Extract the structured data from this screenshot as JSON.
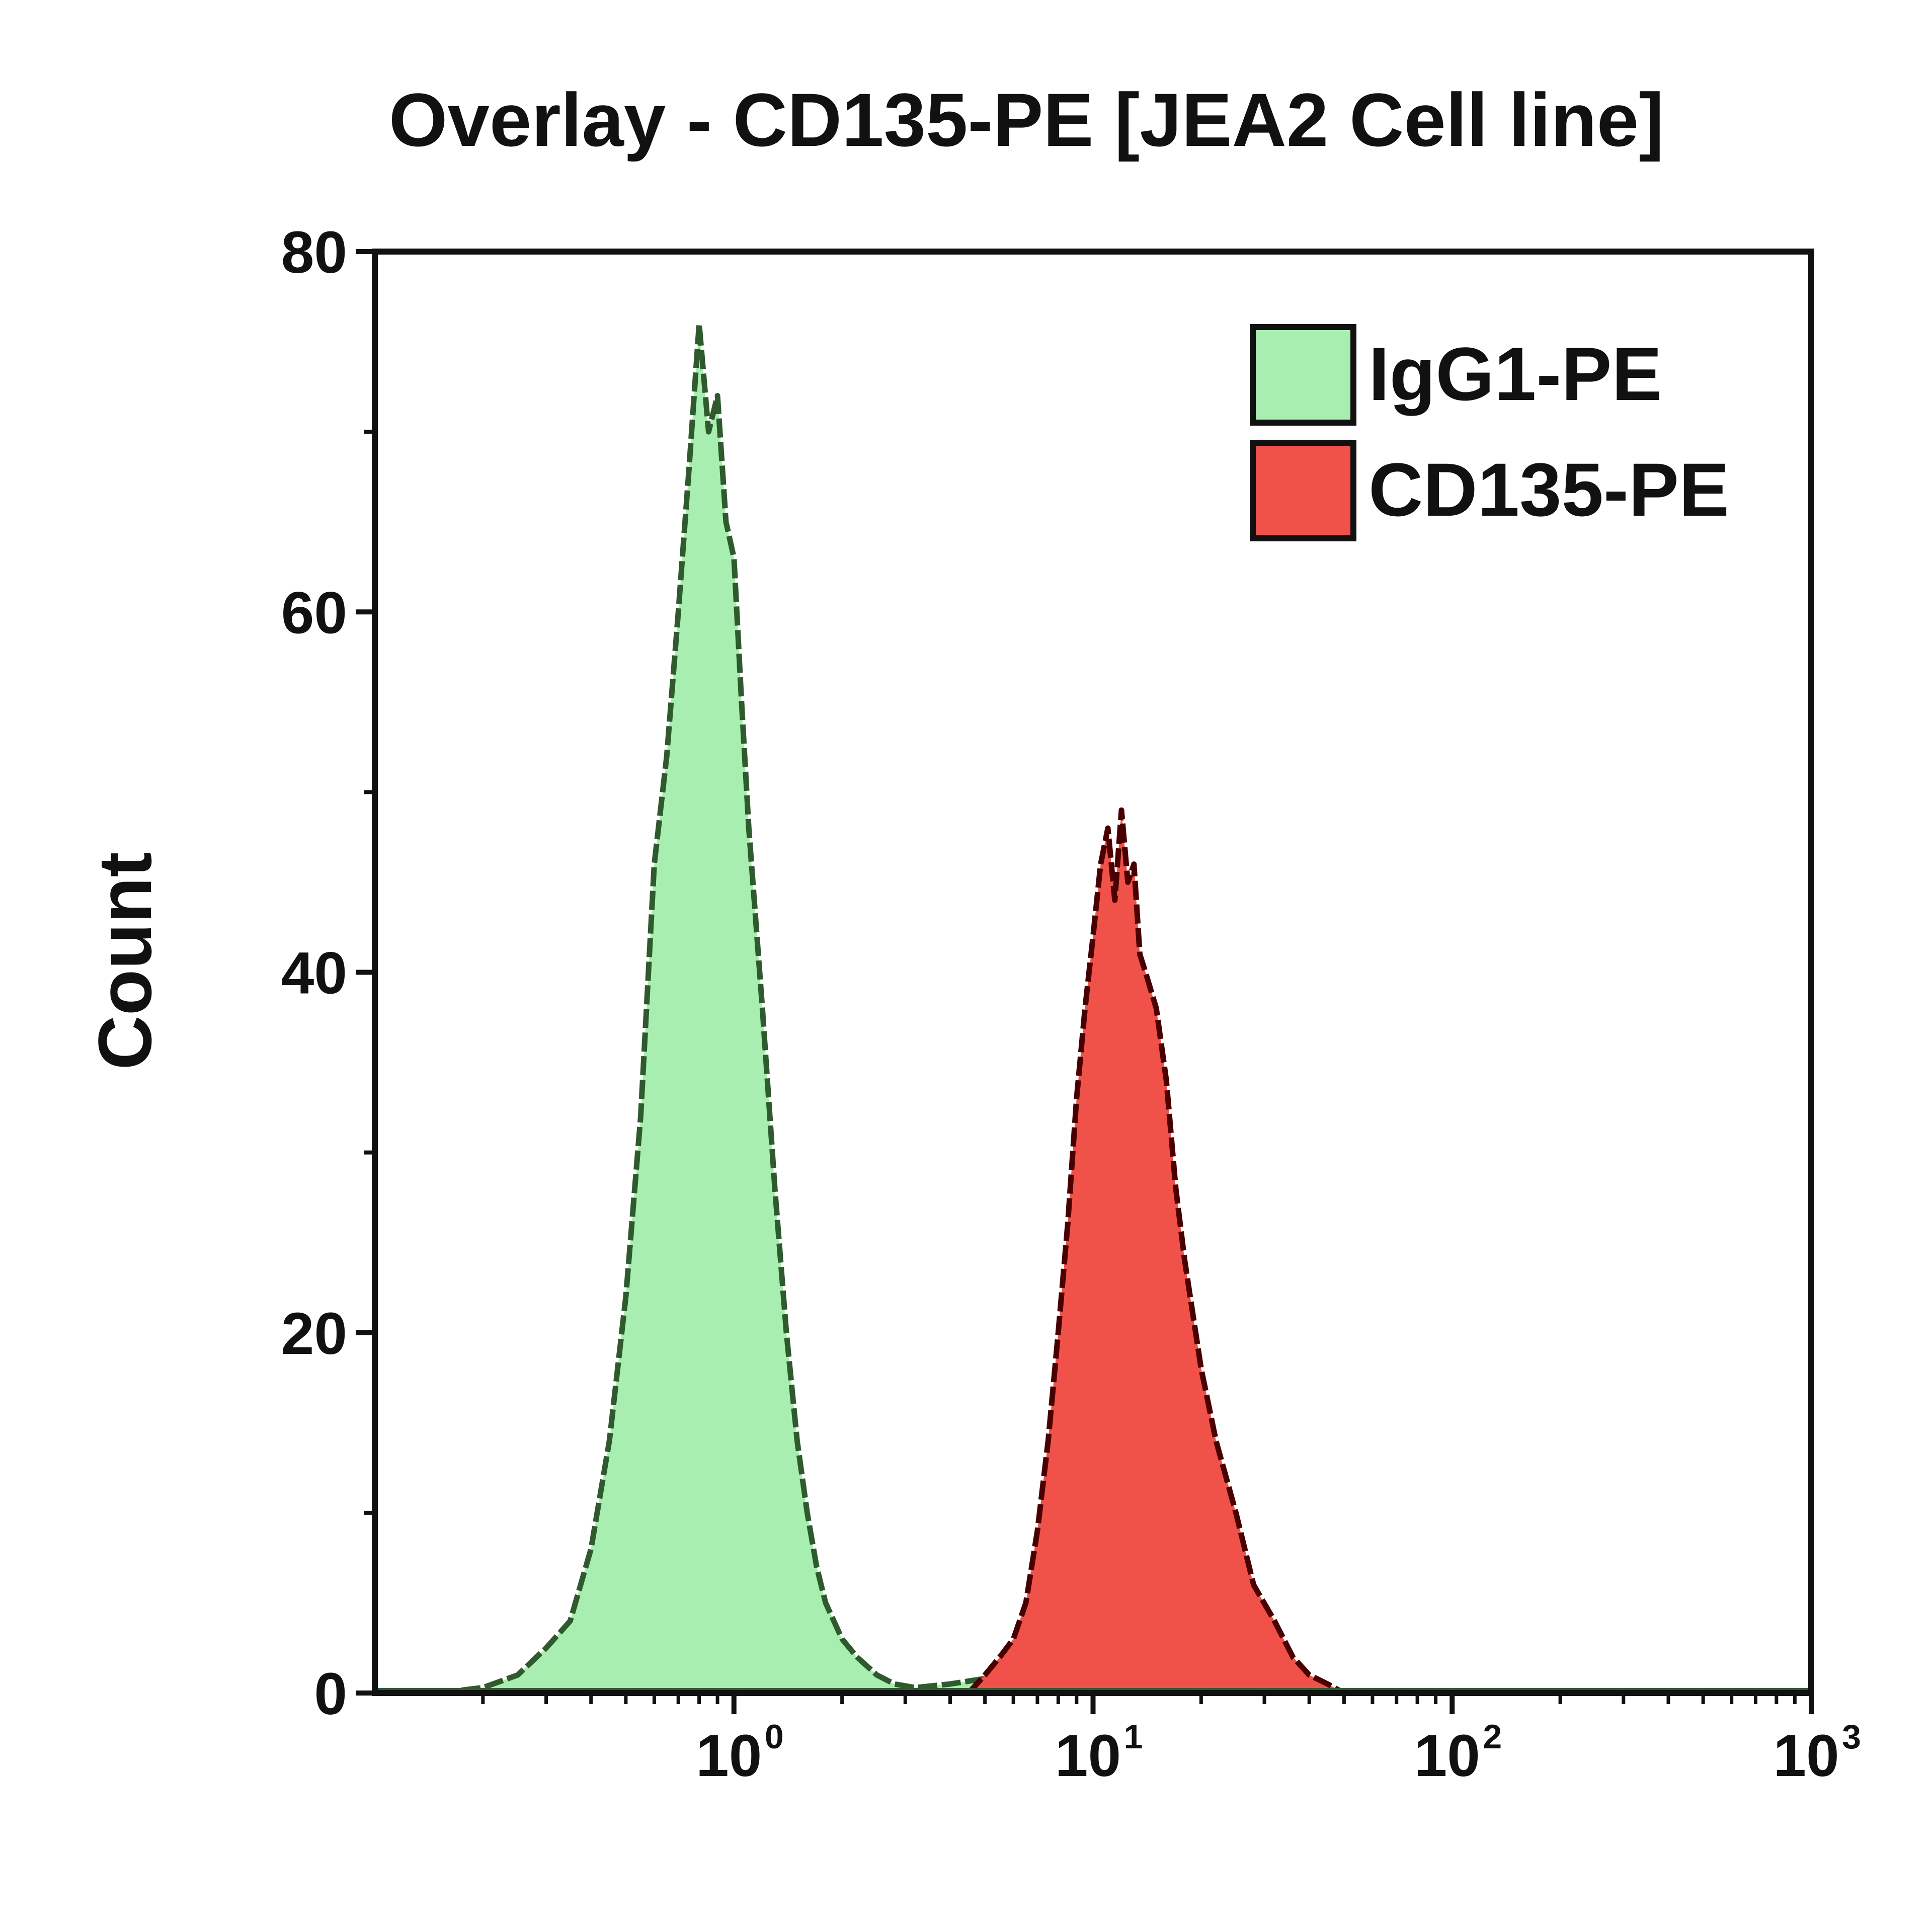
{
  "chart_data": {
    "type": "area",
    "title": "Overlay - CD135-PE [JEA2 Cell line]",
    "xlabel": "",
    "ylabel": "Count",
    "x_scale": "log",
    "xlim": [
      0.1,
      1000
    ],
    "ylim": [
      0,
      80
    ],
    "x_ticks": [
      {
        "base": "10",
        "exp": "0",
        "value": 1
      },
      {
        "base": "10",
        "exp": "1",
        "value": 10
      },
      {
        "base": "10",
        "exp": "2",
        "value": 100
      },
      {
        "base": "10",
        "exp": "3",
        "value": 1000
      }
    ],
    "y_ticks": [
      "0",
      "20",
      "40",
      "60",
      "80"
    ],
    "y_tick_values": [
      0,
      20,
      40,
      60,
      80
    ],
    "legend_position": "top-right",
    "grid": false,
    "series": [
      {
        "name": "IgG1-PE",
        "color": "#a8eeb0",
        "line_color": "#2e5a2e",
        "x": [
          0.15,
          0.2,
          0.25,
          0.3,
          0.35,
          0.4,
          0.45,
          0.5,
          0.55,
          0.6,
          0.65,
          0.7,
          0.75,
          0.8,
          0.85,
          0.9,
          0.95,
          1.0,
          1.05,
          1.1,
          1.2,
          1.3,
          1.4,
          1.5,
          1.6,
          1.7,
          1.8,
          2.0,
          2.2,
          2.5,
          2.8,
          3.2,
          4.0,
          5.0,
          6.0,
          8.0,
          10.0
        ],
        "values": [
          0,
          0.3,
          1,
          2.5,
          4,
          8,
          14,
          22,
          32,
          46,
          52,
          60,
          68,
          76,
          70,
          72,
          65,
          63,
          55,
          48,
          38,
          28,
          20,
          14,
          10,
          7,
          5,
          3,
          2,
          1,
          0.5,
          0.3,
          0.5,
          0.8,
          1,
          0.5,
          0
        ]
      },
      {
        "name": "CD135-PE",
        "color": "#f0524a",
        "line_color": "#4a0000",
        "x": [
          4.5,
          5.0,
          5.5,
          6.0,
          6.5,
          7.0,
          7.5,
          8.0,
          8.5,
          9.0,
          9.5,
          10.0,
          10.5,
          11.0,
          11.5,
          12.0,
          12.5,
          13.0,
          13.5,
          14.0,
          15.0,
          16.0,
          17.0,
          18.0,
          20.0,
          22.0,
          25.0,
          28.0,
          32.0,
          36.0,
          40.0,
          45.0,
          50.0
        ],
        "values": [
          0,
          1,
          2,
          3,
          5,
          9,
          14,
          20,
          26,
          33,
          38,
          42,
          46,
          48,
          44,
          49,
          45,
          46,
          41,
          40,
          38,
          34,
          28,
          24,
          18,
          14,
          10,
          6,
          4,
          2,
          1,
          0.5,
          0
        ]
      }
    ]
  }
}
